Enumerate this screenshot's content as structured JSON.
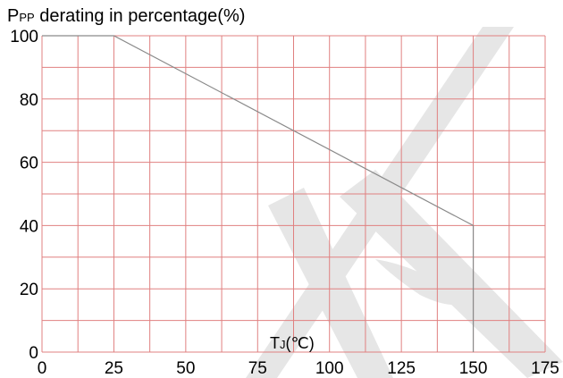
{
  "chart_data": {
    "type": "line",
    "title_main": "P",
    "title_sub": "PP",
    "title_rest": " derating in percentage(%)",
    "xlabel_main": "T",
    "xlabel_sub": "J",
    "xlabel_rest": "(℃)",
    "xlim": [
      0,
      175
    ],
    "ylim": [
      0,
      100
    ],
    "x_ticks": [
      0,
      25,
      50,
      75,
      100,
      125,
      150,
      175
    ],
    "y_ticks": [
      0,
      20,
      40,
      60,
      80,
      100
    ],
    "x_tick_labels": [
      "0",
      "25",
      "50",
      "75",
      "100",
      "125",
      "150",
      "175"
    ],
    "y_tick_labels": [
      "0",
      "20",
      "40",
      "60",
      "80",
      "100"
    ],
    "grid": true,
    "grid_color": "#e08080",
    "line_color": "#8a8a8a",
    "series": [
      {
        "x": [
          0,
          25,
          150,
          150
        ],
        "y": [
          100,
          100,
          40,
          0
        ]
      }
    ]
  }
}
